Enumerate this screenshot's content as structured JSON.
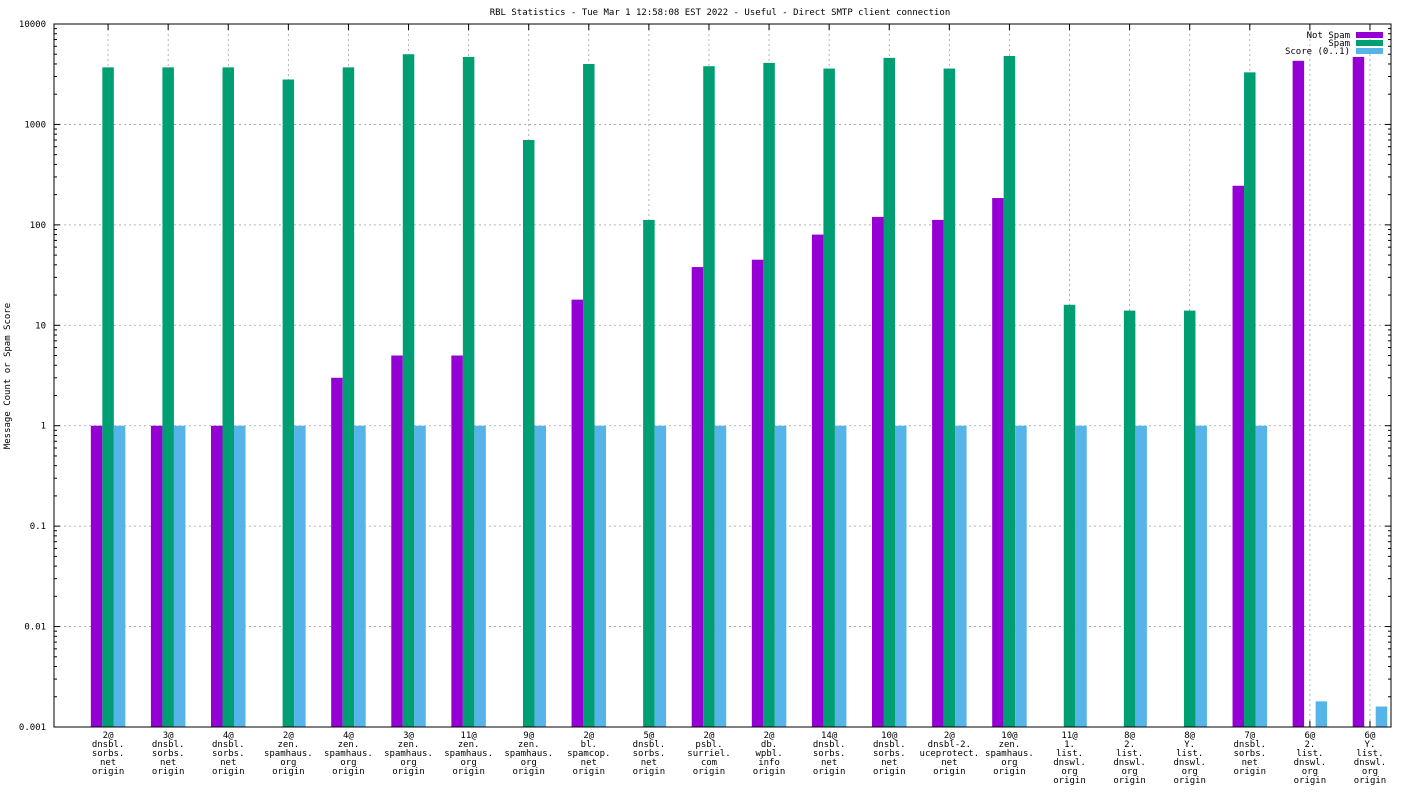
{
  "chart_data": {
    "type": "bar",
    "title": "RBL Statistics - Tue Mar  1 12:58:08 EST 2022 - Useful - Direct SMTP client connection",
    "xlabel": "",
    "ylabel": "Message Count or Spam Score",
    "yscale": "log",
    "ylim": [
      0.001,
      10000
    ],
    "yticks": [
      {
        "value": 0.001,
        "label": "0.001"
      },
      {
        "value": 0.01,
        "label": "0.01"
      },
      {
        "value": 0.1,
        "label": "0.1"
      },
      {
        "value": 1,
        "label": "1"
      },
      {
        "value": 10,
        "label": "10"
      },
      {
        "value": 100,
        "label": "100"
      },
      {
        "value": 1000,
        "label": "1000"
      },
      {
        "value": 10000,
        "label": "10000"
      }
    ],
    "grid": true,
    "legend_position": "top-right",
    "categories": [
      [
        "2@",
        "dnsbl.",
        "sorbs.",
        "net",
        "origin"
      ],
      [
        "3@",
        "dnsbl.",
        "sorbs.",
        "net",
        "origin"
      ],
      [
        "4@",
        "dnsbl.",
        "sorbs.",
        "net",
        "origin"
      ],
      [
        "2@",
        "zen.",
        "spamhaus.",
        "org",
        "origin"
      ],
      [
        "4@",
        "zen.",
        "spamhaus.",
        "org",
        "origin"
      ],
      [
        "3@",
        "zen.",
        "spamhaus.",
        "org",
        "origin"
      ],
      [
        "11@",
        "zen.",
        "spamhaus.",
        "org",
        "origin"
      ],
      [
        "9@",
        "zen.",
        "spamhaus.",
        "org",
        "origin"
      ],
      [
        "2@",
        "bl.",
        "spamcop.",
        "net",
        "origin"
      ],
      [
        "5@",
        "dnsbl.",
        "sorbs.",
        "net",
        "origin"
      ],
      [
        "2@",
        "psbl.",
        "surriel.",
        "com",
        "origin"
      ],
      [
        "2@",
        "db.",
        "wpbl.",
        "info",
        "origin"
      ],
      [
        "14@",
        "dnsbl.",
        "sorbs.",
        "net",
        "origin"
      ],
      [
        "10@",
        "dnsbl.",
        "sorbs.",
        "net",
        "origin"
      ],
      [
        "2@",
        "dnsbl-2.",
        "uceprotect.",
        "net",
        "origin"
      ],
      [
        "10@",
        "zen.",
        "spamhaus.",
        "org",
        "origin"
      ],
      [
        "11@",
        "1.",
        "list.",
        "dnswl.",
        "org",
        "origin"
      ],
      [
        "8@",
        "2.",
        "list.",
        "dnswl.",
        "org",
        "origin"
      ],
      [
        "8@",
        "Y.",
        "list.",
        "dnswl.",
        "org",
        "origin"
      ],
      [
        "7@",
        "dnsbl.",
        "sorbs.",
        "net",
        "origin"
      ],
      [
        "6@",
        "2.",
        "list.",
        "dnswl.",
        "org",
        "origin"
      ],
      [
        "6@",
        "Y.",
        "list.",
        "dnswl.",
        "org",
        "origin"
      ]
    ],
    "series": [
      {
        "name": "Not Spam",
        "color": "#9400d3",
        "values": [
          1,
          1,
          1,
          null,
          3,
          5,
          5,
          null,
          18,
          null,
          38,
          45,
          80,
          120,
          112,
          185,
          null,
          null,
          null,
          245,
          4300,
          4700
        ]
      },
      {
        "name": "Spam",
        "color": "#009e73",
        "values": [
          3700,
          3700,
          3700,
          2800,
          3700,
          5000,
          4700,
          700,
          4000,
          112,
          3800,
          4100,
          3600,
          4600,
          3600,
          4800,
          16,
          14,
          14,
          3300,
          null,
          null
        ]
      },
      {
        "name": "Score (0..1)",
        "color": "#56b4e9",
        "values": [
          1,
          1,
          1,
          1,
          1,
          1,
          1,
          1,
          1,
          1,
          1,
          1,
          1,
          1,
          1,
          1,
          1,
          1,
          1,
          1,
          0.0018,
          0.0016
        ]
      }
    ]
  }
}
